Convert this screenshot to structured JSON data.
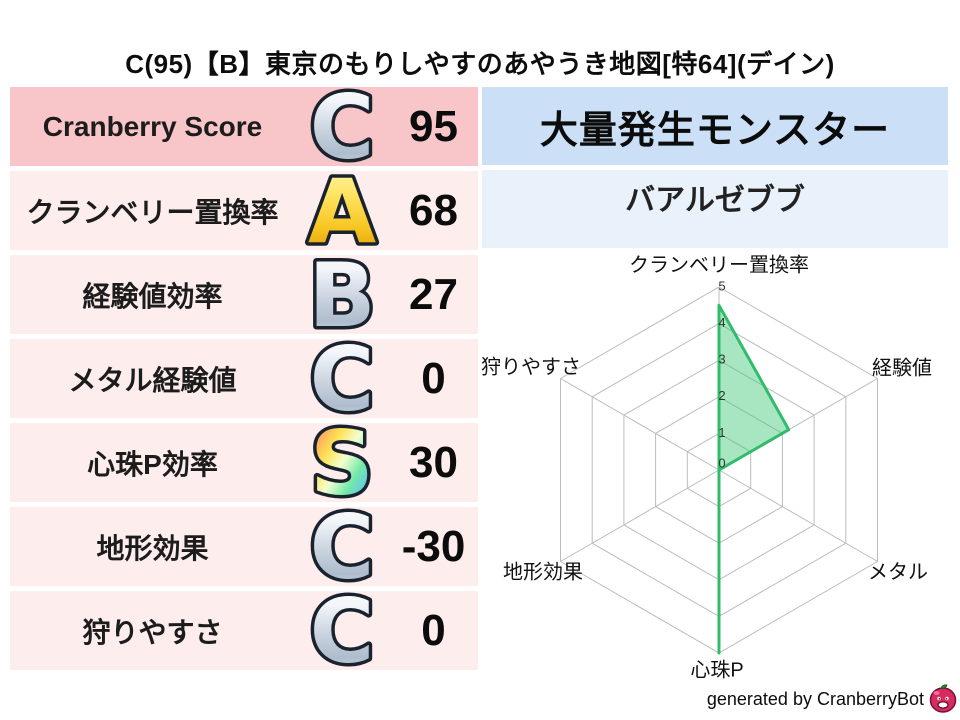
{
  "title": "C(95)【B】東京のもりしやすのあやうき地図[特64](デイン)",
  "stats_table": {
    "rows": [
      {
        "label": "Cranberry Score",
        "grade": "C",
        "grade_style": "silver",
        "value": "95",
        "highlight": true
      },
      {
        "label": "クランベリー置換率",
        "grade": "A",
        "grade_style": "gold",
        "value": "68",
        "highlight": false
      },
      {
        "label": "経験値効率",
        "grade": "B",
        "grade_style": "silver",
        "value": "27",
        "highlight": false
      },
      {
        "label": "メタル経験値",
        "grade": "C",
        "grade_style": "silver",
        "value": "0",
        "highlight": false
      },
      {
        "label": "心珠P効率",
        "grade": "S",
        "grade_style": "rainbow",
        "value": "30",
        "highlight": false
      },
      {
        "label": "地形効果",
        "grade": "C",
        "grade_style": "silver",
        "value": "-30",
        "highlight": false
      },
      {
        "label": "狩りやすさ",
        "grade": "C",
        "grade_style": "silver",
        "value": "0",
        "highlight": false
      }
    ]
  },
  "monster_panel": {
    "header": "大量発生モンスター",
    "name": "バアルゼブブ"
  },
  "chart_data": {
    "type": "radar",
    "title": "",
    "categories": [
      "クランベリー置換率",
      "経験値",
      "メタル",
      "心珠P",
      "地形効果",
      "狩りやすさ"
    ],
    "values": [
      4.5,
      2.2,
      0,
      5,
      0,
      0
    ],
    "ticks": [
      0,
      1,
      2,
      3,
      4,
      5
    ],
    "rmin": 0,
    "rmax": 5,
    "grid": true,
    "fill_color": "#3ec878",
    "fill_opacity": 0.45,
    "stroke_color": "#2fbd6b",
    "grid_color": "#bcbcbc",
    "tick_color": "#333333",
    "label_color": "#111111"
  },
  "footer": {
    "credit": "generated by CranberryBot",
    "icon": "cranberry-bot-emoji"
  },
  "colors": {
    "row_highlight_pink": "#f8c5c9",
    "row_light_pink": "#fdeded",
    "header_blue": "#cbe0f6",
    "name_light_blue": "#e9f1fb",
    "grade_outline": "#1a222d",
    "grade_palettes": {
      "silver": [
        "#ffffff",
        "#f2f5f9",
        "#cdd6e2",
        "#aebccd",
        "#dde4ec"
      ],
      "gold": [
        "#fff7bb",
        "#ffe463",
        "#f7c520",
        "#d89100"
      ],
      "rainbow": [
        "#f78ddc",
        "#ff9e62",
        "#ffe254",
        "#f2ffd2",
        "#74e8a8",
        "#5fc4f2",
        "#8e84f0"
      ]
    }
  }
}
